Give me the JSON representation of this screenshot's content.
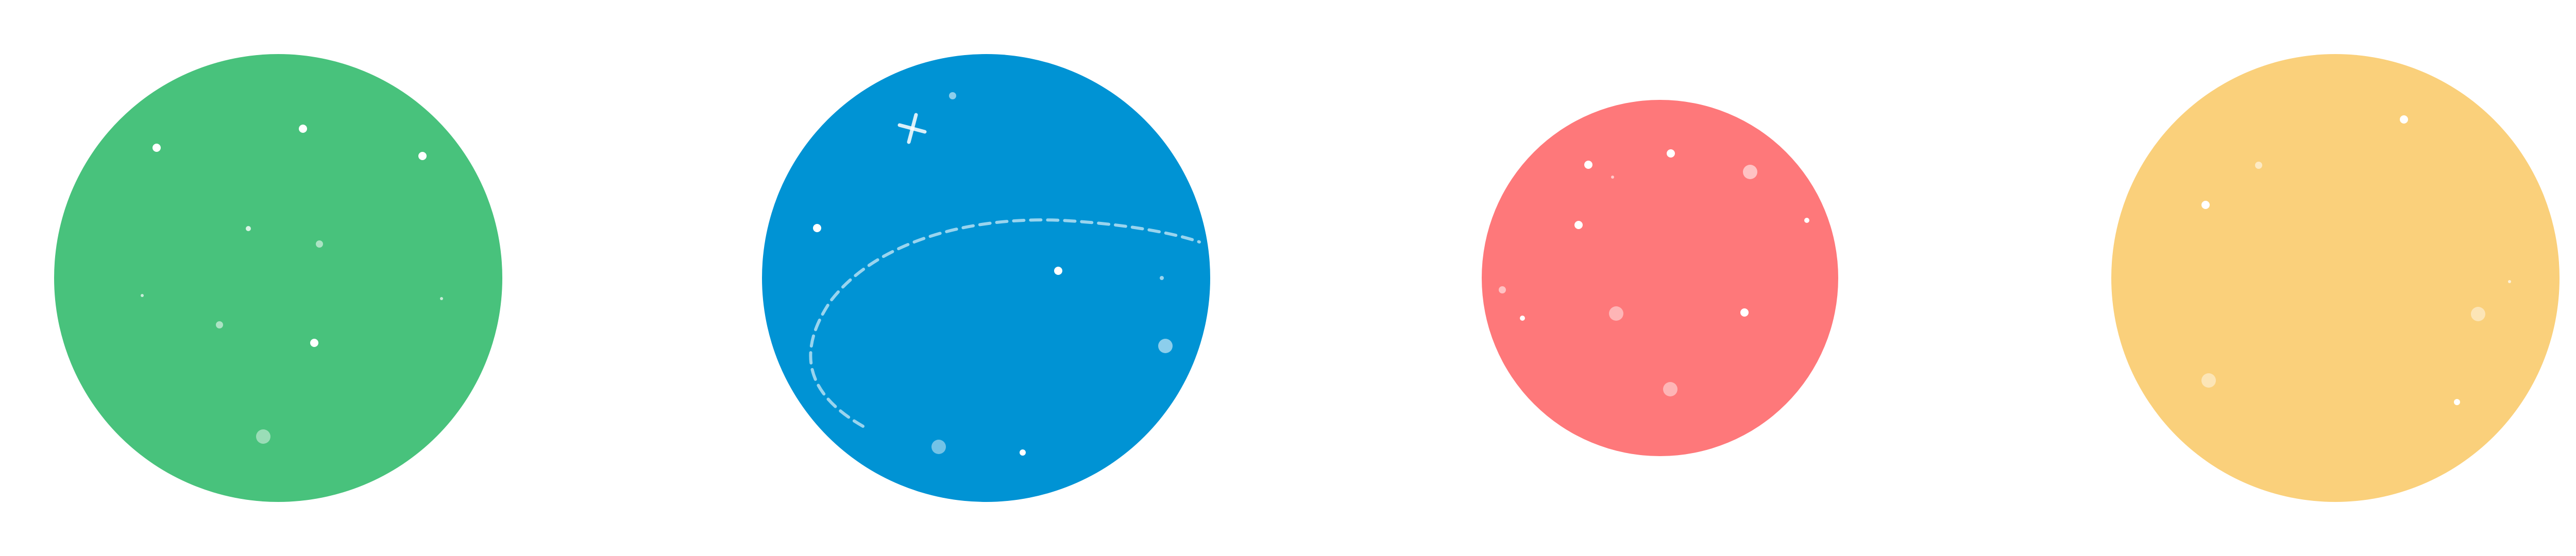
{
  "background": "#ffffff",
  "planets": [
    {
      "name": "green-planet",
      "color": "#48C27C",
      "has_orbit_path": false,
      "has_sparkle": false
    },
    {
      "name": "blue-planet",
      "color": "#0093D4",
      "has_orbit_path": true,
      "has_sparkle": true
    },
    {
      "name": "red-planet",
      "color": "#FE787A",
      "has_orbit_path": false,
      "has_sparkle": false
    },
    {
      "name": "yellow-planet",
      "color": "#FAD07B",
      "has_orbit_path": false,
      "has_sparkle": false
    }
  ],
  "star_color": "#ffffff"
}
